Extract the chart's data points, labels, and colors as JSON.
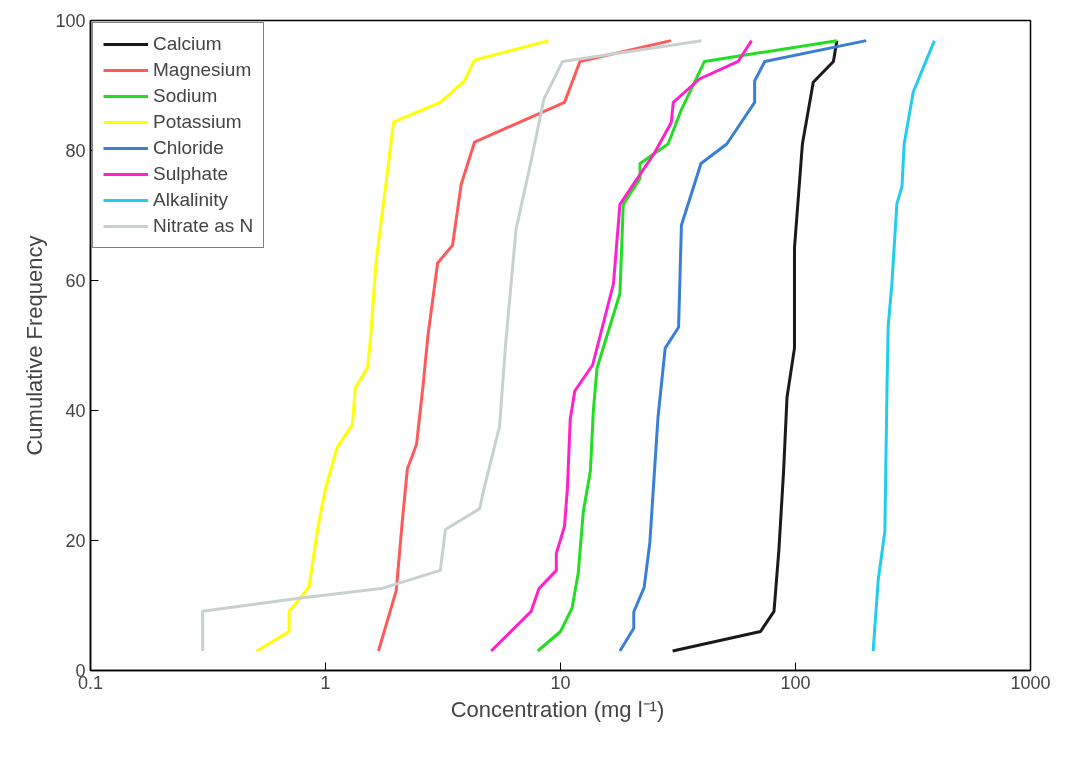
{
  "chart_data": {
    "type": "line",
    "xlabel": "Concentration  (mg l⁻¹)",
    "ylabel": "Cumulative Frequency",
    "log": "x",
    "xlim": [
      0.1,
      1000
    ],
    "xticks": [
      0.1,
      1,
      10,
      100,
      1000
    ],
    "ylim": [
      0,
      100
    ],
    "yticks": [
      0,
      20,
      40,
      60,
      80,
      100
    ],
    "grid": false,
    "legend": "top left",
    "marker": "none",
    "line_style": "solid",
    "series": [
      {
        "name": "Calcium",
        "color": "#1a1a1a",
        "x": [
          30,
          71,
          81,
          85,
          89,
          92,
          99,
          99,
          107,
          119,
          145,
          150
        ],
        "values": [
          3,
          6,
          9.1,
          18.6,
          30.7,
          42,
          49.6,
          65,
          81,
          90.5,
          93.7,
          96.9
        ]
      },
      {
        "name": "Magnesium",
        "color": "#ff5a5a",
        "x": [
          1.68,
          2.0,
          2.12,
          2.23,
          2.44,
          2.6,
          2.73,
          3.0,
          3.47,
          3.78,
          4.31,
          10.4,
          12.1,
          29.5
        ],
        "values": [
          3,
          12.3,
          22.8,
          31,
          34.8,
          43.8,
          51.6,
          62.7,
          65.4,
          74.8,
          81.3,
          87.4,
          93.7,
          96.9
        ]
      },
      {
        "name": "Sodium",
        "color": "#22dd22",
        "x": [
          8.0,
          10,
          11.2,
          11.9,
          12.5,
          13.4,
          13.8,
          14.3,
          17.9,
          18.5,
          21.8,
          21.8,
          28.7,
          32.7,
          41,
          150
        ],
        "values": [
          3,
          6,
          9.6,
          15,
          24.4,
          30.7,
          40,
          46.5,
          58,
          71.7,
          75.7,
          78,
          81,
          86.3,
          93.7,
          96.9
        ]
      },
      {
        "name": "Potassium",
        "color": "#ffff00",
        "x": [
          0.51,
          0.7,
          0.7,
          0.85,
          0.93,
          1.0,
          1.12,
          1.3,
          1.34,
          1.51,
          1.56,
          1.64,
          1.82,
          1.95,
          3.08,
          3.9,
          4.3,
          8.9
        ],
        "values": [
          3,
          6,
          9.1,
          12.8,
          22.2,
          28,
          34.3,
          37.8,
          43.5,
          46.6,
          51.7,
          62.7,
          75.7,
          84.4,
          87.4,
          90.7,
          93.9,
          96.9
        ]
      },
      {
        "name": "Chloride",
        "color": "#3a7fd5",
        "x": [
          17.9,
          20.5,
          20.5,
          22.7,
          24,
          25,
          26,
          27.9,
          31.8,
          32.7,
          39.6,
          51,
          67,
          67,
          74,
          200
        ],
        "values": [
          3,
          6.5,
          9,
          12.8,
          19.7,
          29.6,
          39,
          49.6,
          52.8,
          68.5,
          78,
          81,
          87.4,
          90.7,
          93.7,
          96.9
        ]
      },
      {
        "name": "Sulphate",
        "color": "#ff22cc",
        "x": [
          5.07,
          7.5,
          8.1,
          9.6,
          9.6,
          10.4,
          10.7,
          11,
          11.5,
          13.7,
          16.8,
          17.9,
          25,
          29.6,
          30.2,
          39,
          57,
          65
        ],
        "values": [
          3,
          9.1,
          12.6,
          15.4,
          18,
          22.2,
          28,
          38.6,
          43,
          47,
          59.5,
          71.7,
          79.5,
          84.3,
          87.4,
          91,
          93.7,
          96.9
        ]
      },
      {
        "name": "Alkalinity",
        "color": "#22ccee",
        "x": [
          214,
          225,
          240,
          245,
          248,
          257,
          270,
          284,
          290,
          317,
          390
        ],
        "values": [
          3,
          14,
          21.4,
          43,
          53,
          59.4,
          71.8,
          74.5,
          81,
          89,
          96.9
        ]
      },
      {
        "name": "Nitrate as N",
        "color": "#c8d0d0",
        "x": [
          0.3,
          0.3,
          0.5,
          0.8,
          1.73,
          3.08,
          3.24,
          4.53,
          4.7,
          5.5,
          5.85,
          6.47,
          7.5,
          8.5,
          10.2,
          39.8
        ],
        "values": [
          3,
          9.1,
          10.2,
          11.2,
          12.6,
          15.4,
          21.7,
          24.9,
          27.6,
          37.5,
          50.5,
          67.9,
          78.4,
          87.9,
          93.7,
          96.9
        ]
      }
    ]
  }
}
